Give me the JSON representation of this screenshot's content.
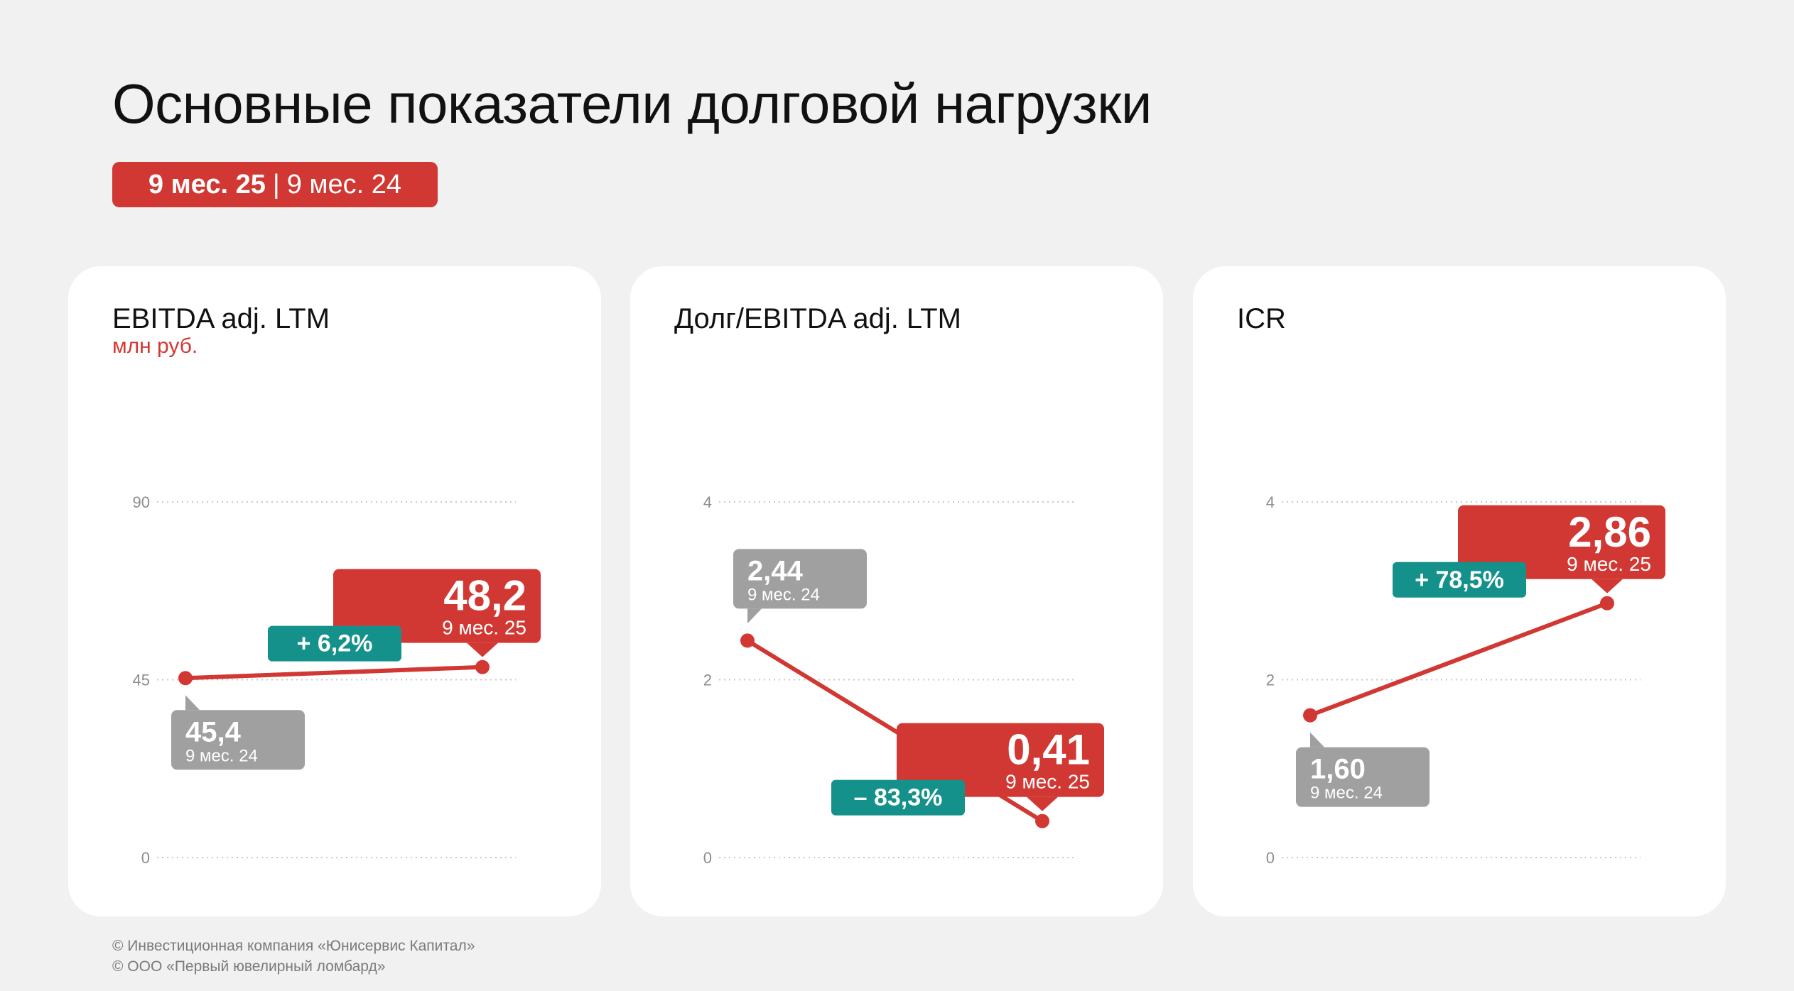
{
  "title": "Основные показатели долговой нагрузки",
  "period": {
    "current": "9 мес. 25",
    "separator": "|",
    "previous": "9 мес. 24"
  },
  "colors": {
    "accent": "#d23833",
    "change": "#14918a",
    "previous": "#a0a0a0",
    "grid": "#c8c8c8"
  },
  "chart_data": [
    {
      "type": "line",
      "title": "EBITDA adj. LTM",
      "ylabel": "млн руб.",
      "ylim": [
        0,
        90
      ],
      "yticks": [
        "0",
        "45",
        "90"
      ],
      "x": [
        "9 мес. 24",
        "9 мес. 25"
      ],
      "values": [
        45.4,
        48.2
      ],
      "value_labels": [
        "45,4",
        "48,2"
      ],
      "change": "+ 6,2%"
    },
    {
      "type": "line",
      "title": "Долг/EBITDA adj. LTM",
      "ylabel": "",
      "ylim": [
        0,
        4
      ],
      "yticks": [
        "0",
        "2",
        "4"
      ],
      "x": [
        "9 мес. 24",
        "9 мес. 25"
      ],
      "values": [
        2.44,
        0.41
      ],
      "value_labels": [
        "2,44",
        "0,41"
      ],
      "change": "– 83,3%"
    },
    {
      "type": "line",
      "title": "ICR",
      "ylabel": "",
      "ylim": [
        0,
        4
      ],
      "yticks": [
        "0",
        "2",
        "4"
      ],
      "x": [
        "9 мес. 24",
        "9 мес. 25"
      ],
      "values": [
        1.6,
        2.86
      ],
      "value_labels": [
        "1,60",
        "2,86"
      ],
      "change": "+ 78,5%"
    }
  ],
  "footer": [
    "© Инвестиционная компания «Юнисервис Капитал»",
    "© ООО «Первый ювелирный ломбард»"
  ]
}
